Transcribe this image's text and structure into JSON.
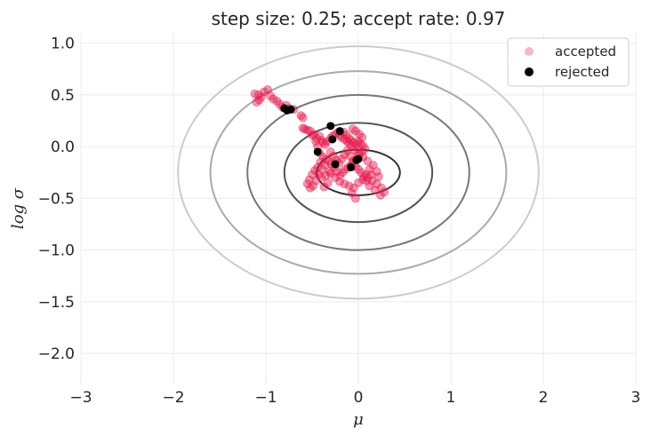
{
  "chart_data": {
    "type": "scatter",
    "title": "step size: 0.25; accept rate: 0.97",
    "xlabel": "μ",
    "ylabel": "log σ",
    "xlim": [
      -3,
      3
    ],
    "ylim": [
      -2.3,
      1.1
    ],
    "xticks": [
      -3,
      -2,
      -1,
      0,
      1,
      2,
      3
    ],
    "xtick_labels": [
      "−3",
      "−2",
      "−1",
      "0",
      "1",
      "2",
      "3"
    ],
    "yticks": [
      -2.0,
      -1.5,
      -1.0,
      -0.5,
      0.0,
      0.5,
      1.0
    ],
    "ytick_labels": [
      "−2.0",
      "−1.5",
      "−1.0",
      "−0.5",
      "0.0",
      "0.5",
      "1.0"
    ],
    "grid": true,
    "legend_position": "top-right",
    "background_contours": {
      "center": [
        0.0,
        -0.25
      ],
      "x_radii": [
        0.45,
        0.8,
        1.2,
        1.6,
        1.95
      ],
      "y_radii": [
        0.22,
        0.48,
        0.75,
        0.98,
        1.22
      ],
      "colors": [
        "#333333",
        "#555555",
        "#777777",
        "#aaaaaa",
        "#cccccc"
      ]
    },
    "series": [
      {
        "name": "accepted",
        "color": "#e8174c",
        "legend_color": "#f5b8c6",
        "points": [
          [
            -1.12,
            0.51
          ],
          [
            -1.08,
            0.5
          ],
          [
            -1.05,
            0.48
          ],
          [
            -1.02,
            0.53
          ],
          [
            -1.07,
            0.45
          ],
          [
            -1.1,
            0.43
          ],
          [
            -0.98,
            0.55
          ],
          [
            -0.95,
            0.49
          ],
          [
            -0.92,
            0.46
          ],
          [
            -0.88,
            0.44
          ],
          [
            -0.85,
            0.41
          ],
          [
            -0.82,
            0.38
          ],
          [
            -0.78,
            0.4
          ],
          [
            -0.75,
            0.37
          ],
          [
            -0.7,
            0.36
          ],
          [
            -0.62,
            0.3
          ],
          [
            -0.6,
            0.28
          ],
          [
            -0.58,
            0.17
          ],
          [
            -0.55,
            0.16
          ],
          [
            -0.52,
            0.15
          ],
          [
            -0.48,
            0.12
          ],
          [
            -0.45,
            0.08
          ],
          [
            -0.42,
            0.1
          ],
          [
            -0.4,
            0.06
          ],
          [
            -0.38,
            0.04
          ],
          [
            -0.36,
            0.02
          ],
          [
            -0.34,
            0.05
          ],
          [
            -0.3,
            0.08
          ],
          [
            -0.28,
            0.1
          ],
          [
            -0.25,
            0.12
          ],
          [
            -0.22,
            0.14
          ],
          [
            -0.2,
            0.11
          ],
          [
            -0.18,
            0.09
          ],
          [
            -0.15,
            0.07
          ],
          [
            -0.12,
            0.05
          ],
          [
            -0.1,
            0.03
          ],
          [
            -0.08,
            0.06
          ],
          [
            -0.05,
            0.04
          ],
          [
            -0.02,
            0.02
          ],
          [
            0.0,
            0.05
          ],
          [
            0.02,
            0.03
          ],
          [
            0.05,
            0.01
          ],
          [
            0.07,
            -0.02
          ],
          [
            0.04,
            -0.05
          ],
          [
            0.01,
            -0.08
          ],
          [
            -0.02,
            -0.12
          ],
          [
            -0.05,
            -0.15
          ],
          [
            -0.08,
            -0.18
          ],
          [
            -0.11,
            -0.2
          ],
          [
            -0.14,
            -0.22
          ],
          [
            -0.17,
            -0.25
          ],
          [
            -0.2,
            -0.28
          ],
          [
            -0.23,
            -0.24
          ],
          [
            -0.26,
            -0.2
          ],
          [
            -0.29,
            -0.17
          ],
          [
            -0.32,
            -0.14
          ],
          [
            -0.35,
            -0.12
          ],
          [
            -0.38,
            -0.1
          ],
          [
            -0.41,
            -0.15
          ],
          [
            -0.44,
            -0.2
          ],
          [
            -0.47,
            -0.23
          ],
          [
            -0.5,
            -0.27
          ],
          [
            -0.53,
            -0.32
          ],
          [
            -0.55,
            -0.36
          ],
          [
            -0.52,
            -0.4
          ],
          [
            -0.49,
            -0.38
          ],
          [
            -0.46,
            -0.33
          ],
          [
            -0.4,
            -0.3
          ],
          [
            -0.35,
            -0.28
          ],
          [
            -0.3,
            -0.26
          ],
          [
            -0.25,
            -0.3
          ],
          [
            -0.2,
            -0.34
          ],
          [
            -0.15,
            -0.36
          ],
          [
            -0.1,
            -0.38
          ],
          [
            -0.05,
            -0.4
          ],
          [
            0.0,
            -0.35
          ],
          [
            0.05,
            -0.32
          ],
          [
            0.1,
            -0.3
          ],
          [
            0.15,
            -0.33
          ],
          [
            0.2,
            -0.36
          ],
          [
            0.25,
            -0.4
          ],
          [
            0.28,
            -0.44
          ],
          [
            0.24,
            -0.47
          ],
          [
            0.18,
            -0.42
          ],
          [
            0.12,
            -0.38
          ],
          [
            0.08,
            -0.27
          ],
          [
            0.12,
            -0.22
          ],
          [
            0.16,
            -0.18
          ],
          [
            0.1,
            -0.14
          ],
          [
            0.05,
            -0.1
          ],
          [
            0.0,
            -0.07
          ],
          [
            -0.04,
            -0.03
          ],
          [
            -0.07,
            0.0
          ],
          [
            -0.1,
            0.08
          ],
          [
            -0.13,
            0.11
          ],
          [
            -0.16,
            0.14
          ],
          [
            -0.06,
            0.17
          ],
          [
            -0.03,
            0.15
          ],
          [
            0.01,
            0.12
          ],
          [
            0.04,
            0.09
          ],
          [
            -0.3,
            -0.05
          ],
          [
            -0.27,
            -0.09
          ],
          [
            -0.24,
            -0.13
          ],
          [
            -0.21,
            -0.16
          ],
          [
            -0.18,
            -0.12
          ],
          [
            -0.15,
            -0.08
          ],
          [
            -0.12,
            -0.04
          ],
          [
            -0.09,
            -0.09
          ],
          [
            -0.06,
            -0.14
          ],
          [
            -0.03,
            -0.19
          ],
          [
            0.0,
            -0.22
          ],
          [
            0.03,
            -0.25
          ],
          [
            0.06,
            -0.29
          ],
          [
            0.09,
            -0.33
          ],
          [
            -0.33,
            -0.35
          ],
          [
            -0.37,
            -0.39
          ],
          [
            -0.43,
            -0.27
          ],
          [
            -0.39,
            -0.22
          ],
          [
            -0.36,
            -0.18
          ],
          [
            -0.31,
            -0.24
          ],
          [
            -0.07,
            -0.45
          ],
          [
            -0.03,
            -0.5
          ],
          [
            0.14,
            -0.27
          ],
          [
            0.2,
            -0.24
          ],
          [
            0.22,
            -0.29
          ],
          [
            -0.6,
            0.18
          ],
          [
            -0.5,
            0.11
          ],
          [
            -0.46,
            0.05
          ],
          [
            -0.44,
            0.0
          ],
          [
            -0.42,
            -0.06
          ]
        ]
      },
      {
        "name": "rejected",
        "color": "#000000",
        "points": [
          [
            -0.8,
            0.37
          ],
          [
            -0.77,
            0.35
          ],
          [
            -0.73,
            0.36
          ],
          [
            -0.3,
            0.2
          ],
          [
            -0.2,
            0.15
          ],
          [
            -0.28,
            0.07
          ],
          [
            -0.44,
            -0.05
          ],
          [
            -0.25,
            -0.17
          ],
          [
            -0.02,
            -0.13
          ],
          [
            -0.08,
            -0.2
          ],
          [
            0.0,
            -0.12
          ]
        ]
      }
    ]
  }
}
